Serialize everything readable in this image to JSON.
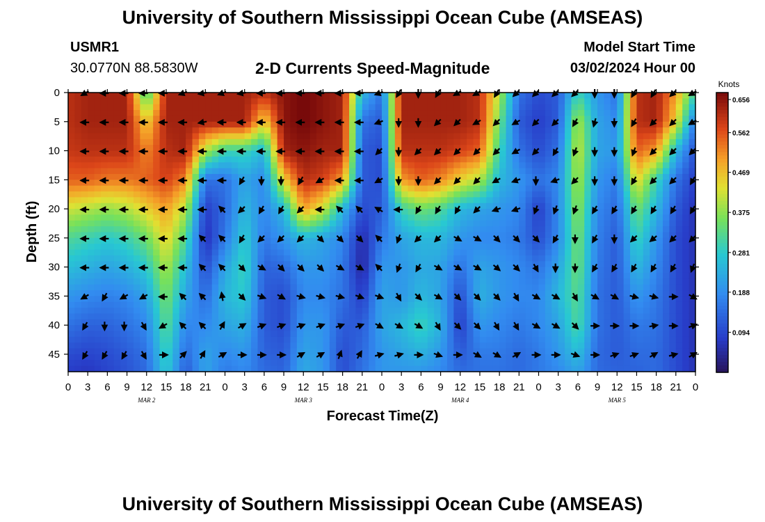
{
  "page": {
    "title": "University of Southern Mississippi Ocean Cube (AMSEAS)",
    "footer_title": "University of Southern Mississippi Ocean Cube (AMSEAS)",
    "station": "USMR1",
    "coordinates": "30.0770N  88.5830W",
    "subtitle": "2-D Currents Speed-Magnitude",
    "model_start_label": "Model Start Time",
    "model_start_value": "03/02/2024 Hour 00"
  },
  "chart_data": {
    "type": "heatmap",
    "title": "2-D Currents Speed-Magnitude",
    "xlabel": "Forecast Time(Z)",
    "ylabel": "Depth (ft)",
    "x_range_hours": [
      0,
      96
    ],
    "x_ticks": [
      {
        "hour": 0,
        "label": "0"
      },
      {
        "hour": 3,
        "label": "3"
      },
      {
        "hour": 6,
        "label": "6"
      },
      {
        "hour": 9,
        "label": "9"
      },
      {
        "hour": 12,
        "label": "12"
      },
      {
        "hour": 15,
        "label": "15"
      },
      {
        "hour": 18,
        "label": "18"
      },
      {
        "hour": 21,
        "label": "21"
      },
      {
        "hour": 24,
        "label": "0"
      },
      {
        "hour": 27,
        "label": "3"
      },
      {
        "hour": 30,
        "label": "6"
      },
      {
        "hour": 33,
        "label": "9"
      },
      {
        "hour": 36,
        "label": "12"
      },
      {
        "hour": 39,
        "label": "15"
      },
      {
        "hour": 42,
        "label": "18"
      },
      {
        "hour": 45,
        "label": "21"
      },
      {
        "hour": 48,
        "label": "0"
      },
      {
        "hour": 51,
        "label": "3"
      },
      {
        "hour": 54,
        "label": "6"
      },
      {
        "hour": 57,
        "label": "9"
      },
      {
        "hour": 60,
        "label": "12"
      },
      {
        "hour": 63,
        "label": "15"
      },
      {
        "hour": 66,
        "label": "18"
      },
      {
        "hour": 69,
        "label": "21"
      },
      {
        "hour": 72,
        "label": "0"
      },
      {
        "hour": 75,
        "label": "3"
      },
      {
        "hour": 78,
        "label": "6"
      },
      {
        "hour": 81,
        "label": "9"
      },
      {
        "hour": 84,
        "label": "12"
      },
      {
        "hour": 87,
        "label": "15"
      },
      {
        "hour": 90,
        "label": "18"
      },
      {
        "hour": 93,
        "label": "21"
      },
      {
        "hour": 96,
        "label": "0"
      }
    ],
    "date_labels": [
      {
        "hour": 12,
        "label": "MAR 2"
      },
      {
        "hour": 36,
        "label": "MAR 3"
      },
      {
        "hour": 60,
        "label": "MAR 4"
      },
      {
        "hour": 84,
        "label": "MAR 5"
      }
    ],
    "y_range_ft": [
      0,
      48
    ],
    "y_ticks": [
      0,
      5,
      10,
      15,
      20,
      25,
      30,
      35,
      40,
      45
    ],
    "colorbar": {
      "unit_label": "Knots",
      "range": [
        0.0,
        0.656
      ],
      "tick_labels": [
        "0.656",
        "0.562",
        "0.469",
        "0.375",
        "0.281",
        "0.188",
        "0.094"
      ],
      "tick_values": [
        0.656,
        0.562,
        0.469,
        0.375,
        0.281,
        0.188,
        0.094
      ]
    },
    "speed_profile_hours": [
      0,
      3,
      6,
      9,
      12,
      15,
      18,
      21,
      24,
      27,
      30,
      33,
      36,
      39,
      42,
      45,
      48,
      51,
      54,
      57,
      60,
      63,
      66,
      69,
      72,
      75,
      78,
      81,
      84,
      87,
      90,
      93,
      96
    ],
    "speed_profile_depths_ft": [
      0,
      5,
      10,
      15,
      20,
      25,
      30,
      35,
      40,
      45,
      48
    ],
    "speed_knots": [
      [
        0.6,
        0.6,
        0.59,
        0.55,
        0.42,
        0.32,
        0.26,
        0.2,
        0.15,
        0.1,
        0.08
      ],
      [
        0.62,
        0.62,
        0.6,
        0.55,
        0.4,
        0.3,
        0.24,
        0.18,
        0.13,
        0.09,
        0.07
      ],
      [
        0.62,
        0.62,
        0.6,
        0.53,
        0.38,
        0.28,
        0.22,
        0.17,
        0.13,
        0.1,
        0.09
      ],
      [
        0.62,
        0.62,
        0.6,
        0.53,
        0.4,
        0.3,
        0.24,
        0.18,
        0.15,
        0.12,
        0.11
      ],
      [
        0.3,
        0.45,
        0.52,
        0.55,
        0.45,
        0.35,
        0.28,
        0.22,
        0.18,
        0.15,
        0.14
      ],
      [
        0.62,
        0.62,
        0.6,
        0.58,
        0.5,
        0.45,
        0.4,
        0.36,
        0.33,
        0.3,
        0.28
      ],
      [
        0.62,
        0.62,
        0.62,
        0.52,
        0.4,
        0.32,
        0.26,
        0.22,
        0.18,
        0.14,
        0.12
      ],
      [
        0.62,
        0.62,
        0.4,
        0.15,
        0.08,
        0.06,
        0.1,
        0.14,
        0.18,
        0.22,
        0.22
      ],
      [
        0.62,
        0.62,
        0.3,
        0.15,
        0.14,
        0.16,
        0.22,
        0.25,
        0.22,
        0.18,
        0.16
      ],
      [
        0.62,
        0.62,
        0.3,
        0.22,
        0.25,
        0.28,
        0.3,
        0.28,
        0.24,
        0.2,
        0.18
      ],
      [
        0.6,
        0.45,
        0.25,
        0.18,
        0.18,
        0.16,
        0.13,
        0.12,
        0.12,
        0.13,
        0.14
      ],
      [
        0.64,
        0.64,
        0.62,
        0.45,
        0.25,
        0.2,
        0.14,
        0.1,
        0.1,
        0.12,
        0.13
      ],
      [
        0.66,
        0.66,
        0.64,
        0.6,
        0.5,
        0.25,
        0.2,
        0.18,
        0.2,
        0.22,
        0.23
      ],
      [
        0.64,
        0.64,
        0.62,
        0.58,
        0.42,
        0.22,
        0.2,
        0.18,
        0.2,
        0.2,
        0.2
      ],
      [
        0.62,
        0.62,
        0.62,
        0.5,
        0.25,
        0.18,
        0.16,
        0.15,
        0.12,
        0.1,
        0.1
      ],
      [
        0.25,
        0.15,
        0.12,
        0.12,
        0.1,
        0.05,
        0.04,
        0.08,
        0.12,
        0.14,
        0.15
      ],
      [
        0.15,
        0.12,
        0.1,
        0.1,
        0.12,
        0.16,
        0.2,
        0.22,
        0.22,
        0.2,
        0.2
      ],
      [
        0.62,
        0.62,
        0.6,
        0.5,
        0.3,
        0.22,
        0.2,
        0.2,
        0.25,
        0.22,
        0.2
      ],
      [
        0.62,
        0.62,
        0.6,
        0.55,
        0.35,
        0.25,
        0.23,
        0.25,
        0.3,
        0.24,
        0.2
      ],
      [
        0.62,
        0.62,
        0.6,
        0.52,
        0.32,
        0.25,
        0.22,
        0.22,
        0.24,
        0.2,
        0.18
      ],
      [
        0.62,
        0.62,
        0.58,
        0.45,
        0.25,
        0.2,
        0.15,
        0.1,
        0.08,
        0.12,
        0.14
      ],
      [
        0.6,
        0.6,
        0.55,
        0.4,
        0.22,
        0.18,
        0.22,
        0.24,
        0.2,
        0.16,
        0.15
      ],
      [
        0.4,
        0.35,
        0.3,
        0.25,
        0.2,
        0.18,
        0.2,
        0.2,
        0.18,
        0.16,
        0.15
      ],
      [
        0.15,
        0.12,
        0.15,
        0.2,
        0.18,
        0.16,
        0.18,
        0.18,
        0.16,
        0.14,
        0.14
      ],
      [
        0.1,
        0.08,
        0.1,
        0.15,
        0.08,
        0.1,
        0.15,
        0.18,
        0.18,
        0.16,
        0.16
      ],
      [
        0.12,
        0.12,
        0.15,
        0.18,
        0.18,
        0.18,
        0.22,
        0.25,
        0.22,
        0.2,
        0.18
      ],
      [
        0.3,
        0.4,
        0.42,
        0.4,
        0.38,
        0.36,
        0.35,
        0.33,
        0.32,
        0.26,
        0.22
      ],
      [
        0.2,
        0.22,
        0.22,
        0.2,
        0.18,
        0.17,
        0.16,
        0.15,
        0.15,
        0.14,
        0.14
      ],
      [
        0.15,
        0.18,
        0.2,
        0.16,
        0.14,
        0.12,
        0.12,
        0.12,
        0.12,
        0.12,
        0.13
      ],
      [
        0.6,
        0.6,
        0.55,
        0.45,
        0.35,
        0.3,
        0.25,
        0.2,
        0.16,
        0.14,
        0.13
      ],
      [
        0.62,
        0.62,
        0.5,
        0.3,
        0.25,
        0.2,
        0.18,
        0.16,
        0.15,
        0.14,
        0.14
      ],
      [
        0.5,
        0.45,
        0.25,
        0.15,
        0.12,
        0.1,
        0.1,
        0.1,
        0.1,
        0.1,
        0.1
      ],
      [
        0.3,
        0.15,
        0.1,
        0.08,
        0.06,
        0.06,
        0.06,
        0.06,
        0.06,
        0.06,
        0.06
      ]
    ],
    "arrow_hours": [
      3,
      6,
      9,
      12,
      15,
      18,
      21,
      24,
      27,
      30,
      33,
      36,
      39,
      42,
      45,
      48,
      51,
      54,
      57,
      60,
      63,
      66,
      69,
      72,
      75,
      78,
      81,
      84,
      87,
      90,
      93,
      96
    ],
    "arrow_depths_ft": [
      0,
      5,
      10,
      15,
      20,
      25,
      30,
      35,
      40,
      45
    ],
    "arrow_directions_deg_from_east": [
      [
        210,
        180,
        180,
        180,
        180,
        180,
        180,
        210,
        240,
        240
      ],
      [
        180,
        180,
        180,
        180,
        180,
        180,
        180,
        240,
        270,
        240
      ],
      [
        180,
        180,
        180,
        180,
        180,
        180,
        180,
        210,
        270,
        240
      ],
      [
        180,
        180,
        180,
        180,
        180,
        180,
        180,
        210,
        300,
        300
      ],
      [
        180,
        180,
        180,
        180,
        180,
        180,
        180,
        180,
        210,
        0
      ],
      [
        200,
        180,
        180,
        180,
        180,
        180,
        180,
        135,
        135,
        45
      ],
      [
        190,
        190,
        180,
        180,
        180,
        135,
        135,
        135,
        135,
        60
      ],
      [
        200,
        180,
        180,
        180,
        135,
        135,
        135,
        100,
        60,
        30
      ],
      [
        190,
        180,
        180,
        240,
        225,
        240,
        315,
        315,
        30,
        0
      ],
      [
        180,
        180,
        180,
        270,
        240,
        225,
        330,
        340,
        20,
        0
      ],
      [
        180,
        180,
        180,
        270,
        240,
        225,
        315,
        330,
        20,
        0
      ],
      [
        180,
        180,
        180,
        240,
        225,
        225,
        315,
        345,
        20,
        30
      ],
      [
        180,
        180,
        180,
        210,
        180,
        315,
        315,
        345,
        20,
        30
      ],
      [
        180,
        180,
        180,
        180,
        135,
        315,
        330,
        345,
        20,
        70
      ],
      [
        180,
        180,
        180,
        180,
        135,
        315,
        330,
        340,
        20,
        60
      ],
      [
        200,
        200,
        225,
        210,
        150,
        135,
        135,
        340,
        330,
        15
      ],
      [
        240,
        270,
        270,
        270,
        180,
        250,
        250,
        300,
        330,
        15
      ],
      [
        270,
        270,
        225,
        270,
        240,
        225,
        240,
        315,
        330,
        0
      ],
      [
        240,
        225,
        225,
        225,
        240,
        225,
        330,
        330,
        300,
        340
      ],
      [
        210,
        225,
        225,
        225,
        240,
        330,
        330,
        315,
        315,
        0
      ],
      [
        210,
        210,
        225,
        225,
        225,
        330,
        330,
        315,
        315,
        330
      ],
      [
        240,
        225,
        225,
        210,
        200,
        315,
        320,
        315,
        300,
        330
      ],
      [
        225,
        210,
        210,
        200,
        200,
        315,
        315,
        300,
        300,
        30
      ],
      [
        225,
        225,
        225,
        270,
        250,
        315,
        300,
        330,
        330,
        0
      ],
      [
        225,
        225,
        240,
        200,
        250,
        240,
        270,
        330,
        330,
        0
      ],
      [
        225,
        240,
        250,
        225,
        250,
        270,
        270,
        300,
        315,
        340
      ],
      [
        270,
        255,
        270,
        270,
        240,
        240,
        240,
        330,
        0,
        0
      ],
      [
        270,
        270,
        270,
        270,
        240,
        270,
        240,
        330,
        0,
        20
      ],
      [
        240,
        240,
        250,
        240,
        240,
        225,
        240,
        345,
        0,
        20
      ],
      [
        240,
        225,
        225,
        225,
        240,
        220,
        240,
        345,
        10,
        30
      ],
      [
        225,
        225,
        225,
        225,
        240,
        225,
        240,
        0,
        0,
        15
      ],
      [
        210,
        210,
        225,
        240,
        240,
        225,
        250,
        330,
        20,
        30
      ]
    ]
  }
}
